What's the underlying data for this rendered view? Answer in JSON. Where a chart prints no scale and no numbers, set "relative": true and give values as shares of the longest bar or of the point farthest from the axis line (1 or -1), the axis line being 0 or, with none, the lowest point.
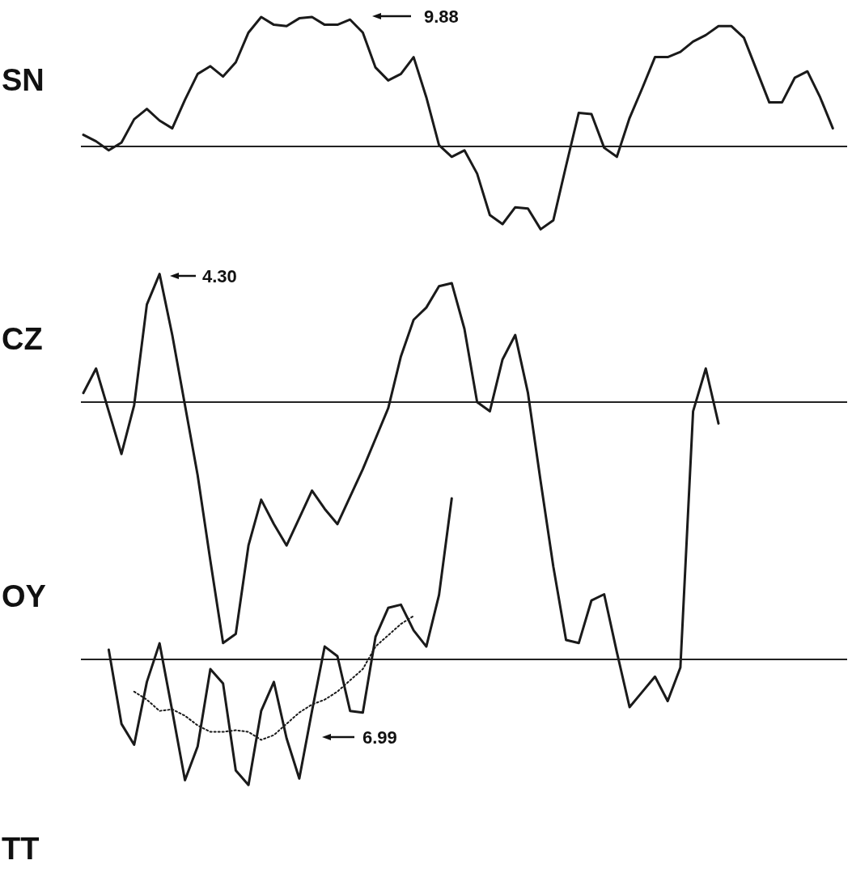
{
  "chart_data": [
    {
      "type": "line",
      "title": "SN",
      "relative": true,
      "annotations": [
        "9.88"
      ],
      "categories": [
        null,
        null,
        null,
        null,
        null,
        null,
        null,
        null,
        null,
        null,
        null,
        null,
        null,
        null,
        null,
        null,
        null,
        null,
        null,
        null,
        null,
        null,
        null,
        null,
        null,
        null,
        null,
        null,
        null,
        null,
        null,
        null,
        null,
        null,
        null,
        null,
        null,
        null,
        null,
        null,
        null,
        null,
        null,
        null,
        null,
        null,
        null,
        null,
        null,
        null,
        null,
        null,
        null,
        null,
        null,
        null,
        null,
        null,
        null,
        null
      ],
      "series": [
        {
          "color": "#1a1a1a",
          "line_style": "solid",
          "values": [
            0.09,
            0.04,
            -0.03,
            0.03,
            0.21,
            0.29,
            0.2,
            0.14,
            0.36,
            0.56,
            0.62,
            0.54,
            0.65,
            0.88,
            1,
            0.94,
            0.93,
            0.99,
            1,
            0.94,
            0.94,
            0.98,
            0.88,
            0.61,
            0.51,
            0.56,
            0.69,
            0.38,
            0.01,
            -0.08,
            -0.03,
            -0.21,
            -0.53,
            -0.6,
            -0.47,
            -0.48,
            -0.64,
            -0.57,
            -0.15,
            0.26,
            0.25,
            -0.01,
            -0.08,
            0.22,
            0.45,
            0.69,
            0.69,
            0.73,
            0.81,
            0.86,
            0.93,
            0.93,
            0.84,
            0.59,
            0.34,
            0.34,
            0.53,
            0.58,
            0.38,
            0.14
          ]
        }
      ]
    },
    {
      "type": "line",
      "title": "CZ",
      "relative": true,
      "annotations": [
        "4.30"
      ],
      "categories": [
        null,
        null,
        null,
        null,
        null,
        null,
        null,
        null,
        null,
        null,
        null,
        null,
        null,
        null,
        null,
        null,
        null,
        null,
        null,
        null,
        null,
        null,
        null,
        null,
        null,
        null,
        null,
        null,
        null,
        null,
        null,
        null,
        null,
        null,
        null,
        null,
        null,
        null,
        null,
        null,
        null,
        null,
        null,
        null,
        null,
        null,
        null,
        null,
        null,
        null,
        null
      ],
      "series": [
        {
          "color": "#1a1a1a",
          "line_style": "solid",
          "values": [
            0.03,
            0.11,
            -0.03,
            -0.17,
            -0.01,
            0.32,
            0.42,
            0.22,
            -0.01,
            -0.24,
            -0.52,
            -0.79,
            -0.76,
            -0.47,
            -0.32,
            -0.4,
            -0.47,
            -0.38,
            -0.29,
            -0.35,
            -0.4,
            -0.31,
            -0.22,
            -0.12,
            -0.02,
            0.15,
            0.27,
            0.31,
            0.38,
            0.39,
            0.24,
            0,
            -0.03,
            0.14,
            0.22,
            0.03,
            -0.26,
            -0.54,
            -0.78,
            -0.79,
            -0.65,
            -0.63,
            -0.82,
            -1,
            -0.95,
            -0.9,
            -0.98,
            -0.87,
            -0.03,
            0.11,
            -0.07
          ]
        }
      ]
    },
    {
      "type": "line",
      "title": "OY",
      "relative": true,
      "annotations": [
        "6.99",
        "TT"
      ],
      "categories": [
        null,
        null,
        null,
        null,
        null,
        null,
        null,
        null,
        null,
        null,
        null,
        null,
        null,
        null,
        null,
        null,
        null,
        null,
        null,
        null,
        null,
        null,
        null,
        null,
        null,
        null,
        null,
        null
      ],
      "series": [
        {
          "color": "#1a1a1a",
          "line_style": "solid",
          "values": [
            0.06,
            -0.4,
            -0.53,
            -0.14,
            0.1,
            -0.32,
            -0.75,
            -0.54,
            -0.06,
            -0.15,
            -0.69,
            -0.78,
            -0.32,
            -0.14,
            -0.49,
            -0.74,
            -0.32,
            0.08,
            0.02,
            -0.32,
            -0.33,
            0.14,
            0.32,
            0.34,
            0.18,
            0.08,
            0.4,
            1
          ]
        },
        {
          "color": "#1a1a1a",
          "line_style": "dotted",
          "values": [
            null,
            null,
            -0.2,
            -0.25,
            -0.32,
            -0.31,
            -0.35,
            -0.41,
            -0.45,
            -0.45,
            -0.44,
            -0.45,
            -0.5,
            -0.47,
            -0.4,
            -0.33,
            -0.28,
            -0.25,
            -0.2,
            -0.13,
            -0.06,
            0.08,
            0.15,
            0.22,
            0.27,
            null,
            null,
            null
          ]
        }
      ]
    }
  ]
}
